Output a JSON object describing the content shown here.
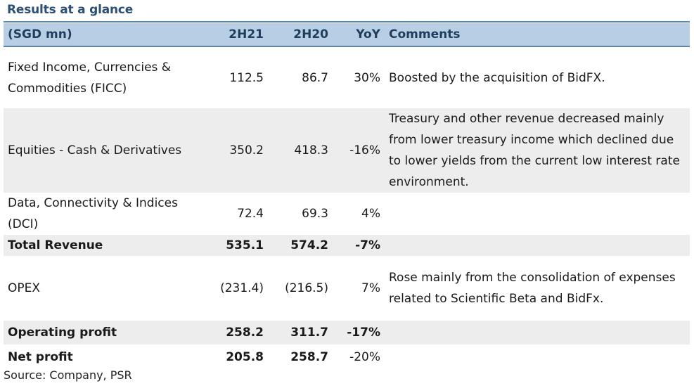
{
  "title": "Results at a glance",
  "header": {
    "label": "(SGD mn)",
    "col1": "2H21",
    "col2": "2H20",
    "col3": "YoY",
    "col4": "Comments"
  },
  "rows": [
    {
      "label": "Fixed Income, Currencies & Commodities (FICC)",
      "v1": "112.5",
      "v2": "86.7",
      "yoy": "30%",
      "comment": "Boosted by the acquisition of BidFX."
    },
    {
      "label": "Equities - Cash & Derivatives",
      "v1": "350.2",
      "v2": "418.3",
      "yoy": "-16%",
      "comment": "Treasury and other revenue decreased mainly from lower treasury income which declined due to lower yields from the current low interest rate environment."
    },
    {
      "label": "Data, Connectivity & Indices (DCI)",
      "v1": "72.4",
      "v2": "69.3",
      "yoy": "4%",
      "comment": ""
    },
    {
      "label": "Total Revenue",
      "v1": "535.1",
      "v2": "574.2",
      "yoy": "-7%",
      "comment": ""
    },
    {
      "label": "OPEX",
      "v1": "(231.4)",
      "v2": "(216.5)",
      "yoy": "7%",
      "comment": "Rose mainly from the consolidation of expenses related to Scientific Beta and BidFx."
    },
    {
      "label": "Operating profit",
      "v1": "258.2",
      "v2": "311.7",
      "yoy": "-17%",
      "comment": ""
    },
    {
      "label": "Net profit",
      "v1": "205.8",
      "v2": "258.7",
      "yoy": "-20%",
      "comment": ""
    }
  ],
  "source": "Source: Company, PSR"
}
